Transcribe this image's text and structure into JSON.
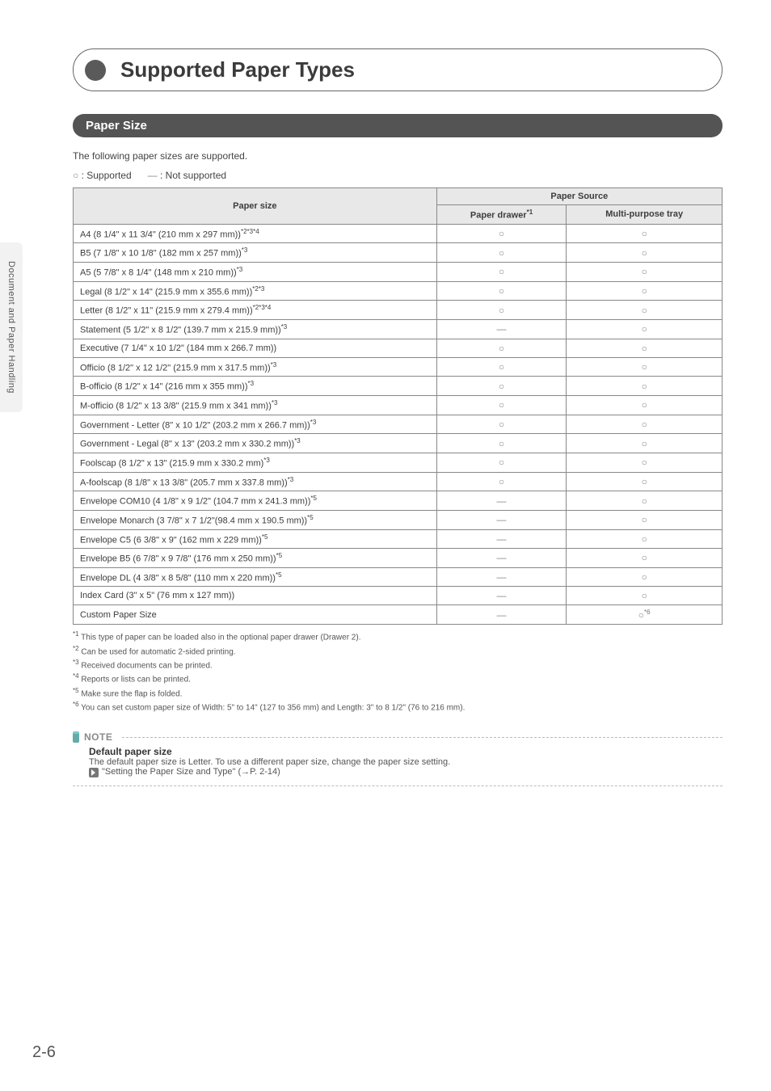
{
  "side_tab": "Document and Paper Handling",
  "title": "Supported Paper Types",
  "section": "Paper Size",
  "intro": "The following paper sizes are supported.",
  "legend_supported_symbol": "○",
  "legend_supported_text": " : Supported",
  "legend_not_symbol": "—",
  "legend_not_text": "  : Not supported",
  "table": {
    "col_paper_size": "Paper size",
    "col_source": "Paper Source",
    "col_drawer": "Paper drawer",
    "col_drawer_sup": "*1",
    "col_tray": "Multi-purpose tray",
    "circle": "○",
    "dash": "—",
    "circle_sup6": "*6",
    "rows": [
      {
        "label": "A4 (8 1/4\" x 11 3/4\" (210 mm x 297 mm))",
        "sup": "*2*3*4",
        "d": "c",
        "t": "c"
      },
      {
        "label": "B5 (7 1/8\" x 10 1/8\" (182 mm x 257 mm))",
        "sup": "*3",
        "d": "c",
        "t": "c"
      },
      {
        "label": "A5 (5 7/8\" x 8 1/4\" (148 mm x 210 mm))",
        "sup": "*3",
        "d": "c",
        "t": "c"
      },
      {
        "label": "Legal (8 1/2\" x 14\" (215.9 mm x 355.6 mm))",
        "sup": "*2*3",
        "d": "c",
        "t": "c"
      },
      {
        "label": "Letter (8 1/2\" x 11\" (215.9 mm x 279.4 mm))",
        "sup": "*2*3*4",
        "d": "c",
        "t": "c"
      },
      {
        "label": "Statement (5 1/2\" x 8 1/2\" (139.7 mm x 215.9 mm))",
        "sup": "*3",
        "d": "d",
        "t": "c"
      },
      {
        "label": "Executive (7 1/4\" x 10 1/2\" (184 mm x 266.7 mm))",
        "sup": "",
        "d": "c",
        "t": "c"
      },
      {
        "label": "Officio (8 1/2\" x 12 1/2\" (215.9 mm x 317.5 mm))",
        "sup": "*3",
        "d": "c",
        "t": "c"
      },
      {
        "label": "B-officio (8 1/2\" x 14\" (216 mm x 355 mm))",
        "sup": "*3",
        "d": "c",
        "t": "c"
      },
      {
        "label": "M-officio (8 1/2\" x 13 3/8\" (215.9 mm x 341 mm))",
        "sup": "*3",
        "d": "c",
        "t": "c"
      },
      {
        "label": "Government - Letter (8\" x 10 1/2\" (203.2 mm x 266.7 mm))",
        "sup": "*3",
        "d": "c",
        "t": "c"
      },
      {
        "label": "Government - Legal (8\" x 13\" (203.2 mm x 330.2 mm))",
        "sup": "*3",
        "d": "c",
        "t": "c"
      },
      {
        "label": "Foolscap (8 1/2\" x 13\" (215.9 mm x 330.2 mm)",
        "sup": "*3",
        "d": "c",
        "t": "c"
      },
      {
        "label": "A-foolscap (8 1/8\" x 13 3/8\" (205.7 mm x 337.8 mm))",
        "sup": "*3",
        "d": "c",
        "t": "c"
      },
      {
        "label": "Envelope COM10 (4 1/8\" x 9 1/2\" (104.7 mm x 241.3 mm))",
        "sup": "*5",
        "d": "d",
        "t": "c"
      },
      {
        "label": "Envelope Monarch (3 7/8\" x 7 1/2\"(98.4 mm x 190.5 mm))",
        "sup": "*5",
        "d": "d",
        "t": "c"
      },
      {
        "label": "Envelope C5 (6 3/8\" x 9\" (162 mm x 229 mm))",
        "sup": "*5",
        "d": "d",
        "t": "c"
      },
      {
        "label": "Envelope B5 (6 7/8\" x 9 7/8\" (176 mm x 250 mm))",
        "sup": "*5",
        "d": "d",
        "t": "c"
      },
      {
        "label": "Envelope DL (4 3/8\" x 8 5/8\" (110 mm x 220 mm))",
        "sup": "*5",
        "d": "d",
        "t": "c"
      },
      {
        "label": "Index Card (3\" x 5\" (76 mm x 127 mm))",
        "sup": "",
        "d": "d",
        "t": "c"
      },
      {
        "label": "Custom Paper Size",
        "sup": "",
        "d": "d",
        "t": "c6"
      }
    ]
  },
  "footnotes": [
    {
      "sup": "*1",
      "text": " This type of paper can be loaded also in the optional paper drawer (Drawer 2)."
    },
    {
      "sup": "*2",
      "text": " Can be used for automatic 2-sided printing."
    },
    {
      "sup": "*3",
      "text": " Received documents can be printed."
    },
    {
      "sup": "*4",
      "text": " Reports or lists can be printed."
    },
    {
      "sup": "*5",
      "text": " Make sure the flap is folded."
    },
    {
      "sup": "*6",
      "text": " You can set custom paper size of Width: 5\" to 14\" (127 to 356 mm) and Length: 3\" to 8 1/2\" (76 to 216 mm)."
    }
  ],
  "note": {
    "label": "NOTE",
    "heading": "Default paper size",
    "line1": "The default paper size is Letter. To use a different paper size, change the paper size setting.",
    "ref": "\"Setting the Paper Size and Type\" (→P. 2-14)"
  },
  "page_number": "2-6"
}
